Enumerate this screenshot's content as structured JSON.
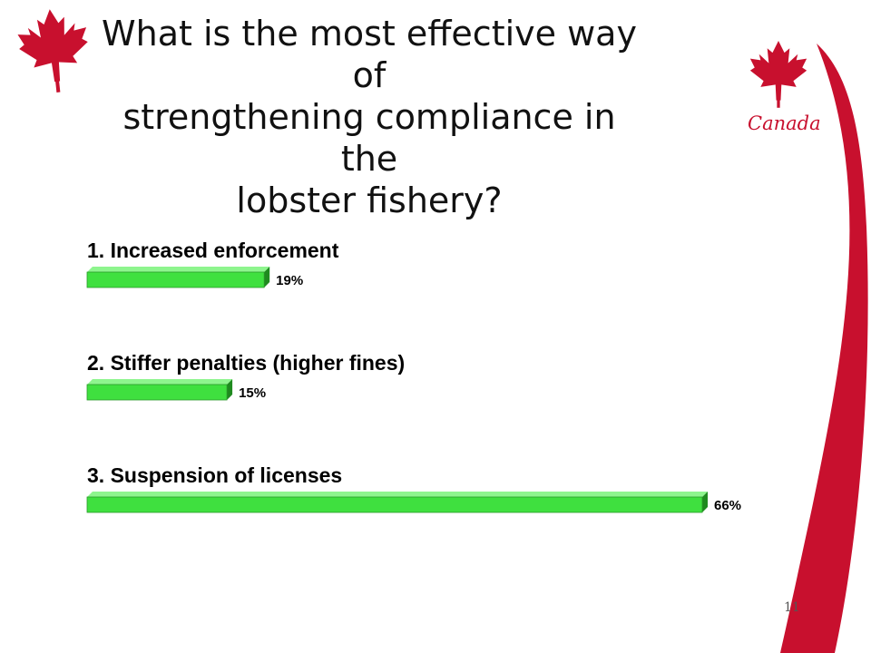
{
  "slide": {
    "title_lines": [
      "What is the most effective way of",
      "strengthening compliance in the",
      "lobster fishery?"
    ],
    "brand": "Canada",
    "page_number": "11",
    "colors": {
      "accent": "#c8102e",
      "bar": "#3fe03f"
    }
  },
  "chart_data": {
    "type": "bar",
    "orientation": "horizontal",
    "categories": [
      "1. Increased enforcement",
      "2. Stiffer penalties (higher fines)",
      "3. Suspension of licenses"
    ],
    "values": [
      19,
      15,
      66
    ],
    "value_labels": [
      "19%",
      "15%",
      "66%"
    ],
    "title": "",
    "xlabel": "",
    "ylabel": "",
    "xlim": [
      0,
      66
    ]
  }
}
